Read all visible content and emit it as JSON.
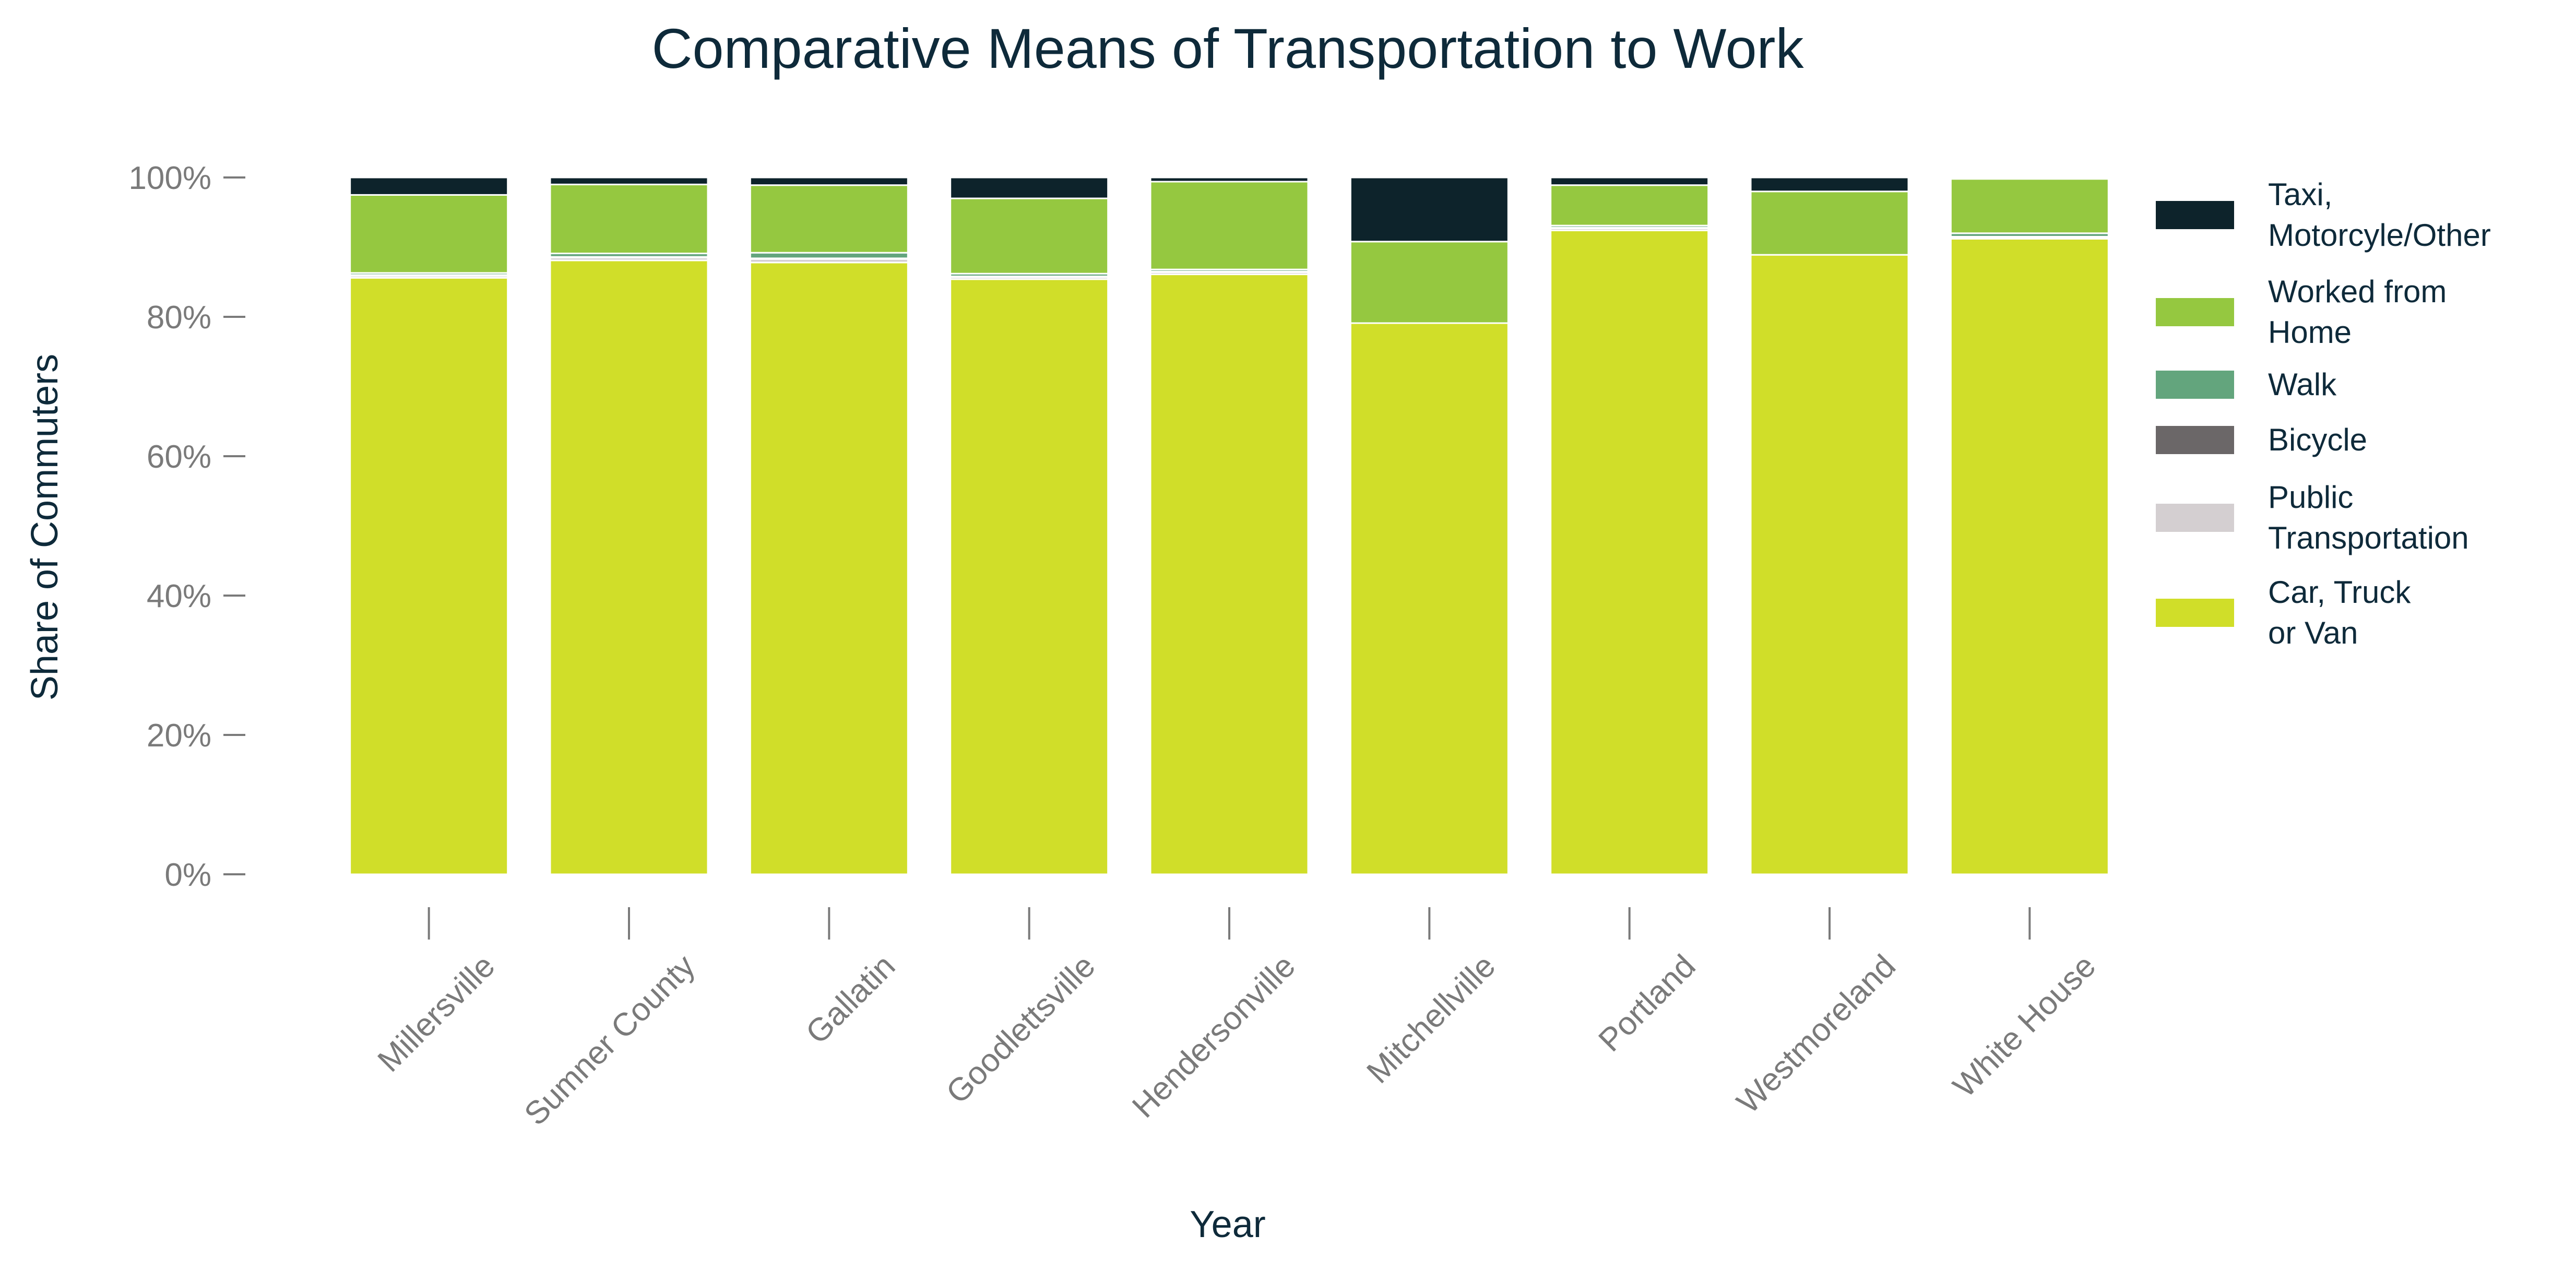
{
  "chart_data": {
    "type": "bar",
    "stacked": true,
    "title": "Comparative Means of Transportation to Work",
    "xlabel": "Year",
    "ylabel": "Share of Commuters",
    "ylim": [
      0,
      100
    ],
    "y_ticks": [
      0,
      20,
      40,
      60,
      80,
      100
    ],
    "y_tick_suffix": "%",
    "grid": false,
    "legend_position": "right",
    "categories": [
      "Millersville",
      "Sumner County",
      "Gallatin",
      "Goodlettsville",
      "Hendersonville",
      "Mitchellville",
      "Portland",
      "Westmoreland",
      "White House"
    ],
    "series": [
      {
        "name": "Car, Truck or Van",
        "color": "#d0de29",
        "values": [
          85.6,
          88.1,
          87.8,
          85.4,
          86.1,
          79.1,
          92.4,
          88.9,
          91.2
        ]
      },
      {
        "name": "Public Transportation",
        "color": "#d4cfd1",
        "values": [
          0.3,
          0.4,
          0.5,
          0.3,
          0.3,
          0.0,
          0.3,
          0.0,
          0.2
        ]
      },
      {
        "name": "Bicycle",
        "color": "#6b6768",
        "values": [
          0.1,
          0.1,
          0.1,
          0.1,
          0.1,
          0.0,
          0.1,
          0.0,
          0.1
        ]
      },
      {
        "name": "Walk",
        "color": "#63a57d",
        "values": [
          0.3,
          0.5,
          0.8,
          0.4,
          0.3,
          0.0,
          0.3,
          0.0,
          0.5
        ]
      },
      {
        "name": "Worked from Home",
        "color": "#95c840",
        "values": [
          11.2,
          9.9,
          9.7,
          10.8,
          12.6,
          11.7,
          5.8,
          9.1,
          7.8
        ]
      },
      {
        "name": "Taxi, Motorcyle/Other",
        "color": "#0d232b",
        "values": [
          2.5,
          1.0,
          1.1,
          3.0,
          0.6,
          9.2,
          1.1,
          2.0,
          0.2
        ]
      }
    ],
    "legend_order": [
      "Taxi, Motorcyle/Other",
      "Worked from Home",
      "Walk",
      "Bicycle",
      "Public Transportation",
      "Car, Truck or Van"
    ],
    "legend_label_lines": {
      "Taxi, Motorcyle/Other": [
        "Taxi,",
        "Motorcyle/Other"
      ],
      "Worked from Home": [
        "Worked from",
        "Home"
      ],
      "Walk": [
        "Walk"
      ],
      "Bicycle": [
        "Bicycle"
      ],
      "Public Transportation": [
        "Public",
        "Transportation"
      ],
      "Car, Truck or Van": [
        "Car, Truck",
        "or Van"
      ]
    }
  }
}
